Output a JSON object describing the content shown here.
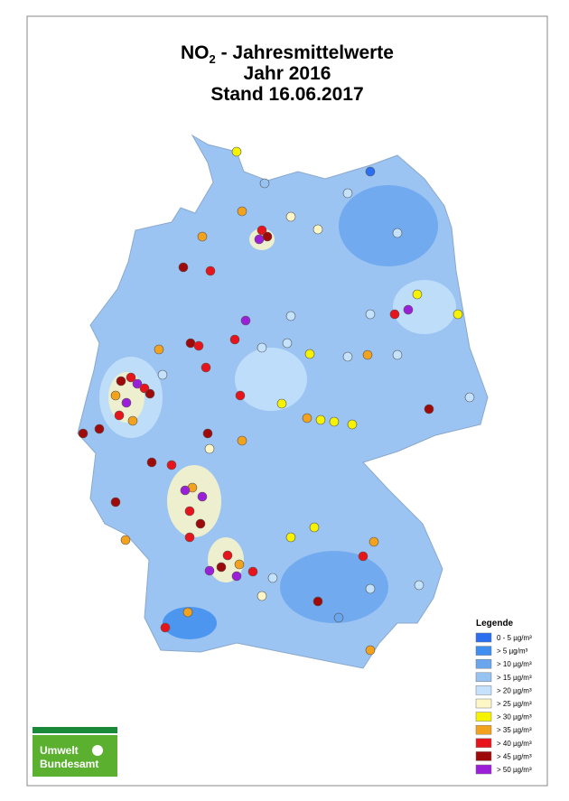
{
  "header": {
    "title_prefix": "NO",
    "title_sub": "2",
    "title_rest": " - Jahresmittelwerte",
    "line2": "Jahr 2016",
    "line3": "Stand 16.06.2017"
  },
  "legend": {
    "title": "Legende",
    "items": [
      {
        "label": "0 - 5 µg/m³",
        "color": "#2b6ff0"
      },
      {
        "label": ">  5 µg/m³",
        "color": "#3f8ff0"
      },
      {
        "label": "> 10 µg/m³",
        "color": "#6aa6ee"
      },
      {
        "label": "> 15 µg/m³",
        "color": "#97c3f2"
      },
      {
        "label": "> 20 µg/m³",
        "color": "#c4e2fb"
      },
      {
        "label": "> 25 µg/m³",
        "color": "#fdf7c8"
      },
      {
        "label": "> 30 µg/m³",
        "color": "#f6f200"
      },
      {
        "label": "> 35 µg/m³",
        "color": "#f2a21c"
      },
      {
        "label": "> 40 µg/m³",
        "color": "#e8141b"
      },
      {
        "label": "> 45 µg/m³",
        "color": "#9e0a0a"
      },
      {
        "label": "> 50 µg/m³",
        "color": "#9b1fd8"
      }
    ]
  },
  "logo": {
    "line1": "Umwelt",
    "line2": "Bundesamt"
  }
}
